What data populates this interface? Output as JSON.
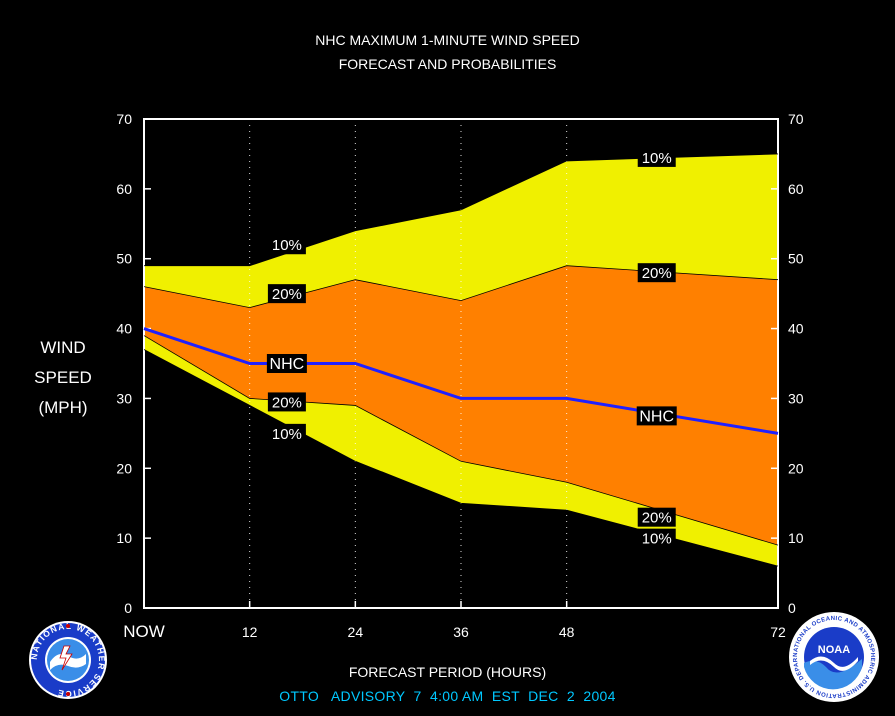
{
  "title_line1": "NHC MAXIMUM 1-MINUTE WIND SPEED",
  "title_line2": "FORECAST AND PROBABILITIES",
  "ylabel_lines": [
    "WIND",
    "SPEED",
    "(MPH)"
  ],
  "xlabel": "FORECAST PERIOD (HOURS)",
  "advisory": "OTTO   ADVISORY  7  4:00 AM  EST  DEC  2  2004",
  "colors": {
    "background": "#000000",
    "outer_band": "#f0f000",
    "inner_band": "#ff8000",
    "nhc_line": "#2020ff",
    "advisory_text": "#00c8ff",
    "text": "#ffffff"
  },
  "chart_data": {
    "type": "area",
    "x": [
      0,
      12,
      24,
      36,
      48,
      72
    ],
    "x_tick_labels": [
      "NOW",
      "12",
      "24",
      "36",
      "48",
      "72"
    ],
    "xlim": [
      0,
      72
    ],
    "ylim": [
      0,
      70
    ],
    "y_ticks": [
      0,
      10,
      20,
      30,
      40,
      50,
      60,
      70
    ],
    "grid": "dotted vertical lines at forecast hours",
    "series": [
      {
        "name": "10%",
        "role": "upper_outer",
        "x": [
          0,
          12,
          24,
          36,
          48,
          72
        ],
        "values": [
          49,
          49,
          54,
          57,
          64,
          65
        ]
      },
      {
        "name": "20%",
        "role": "upper_inner",
        "x": [
          0,
          12,
          24,
          36,
          48,
          72
        ],
        "values": [
          46,
          43,
          47,
          44,
          49,
          47
        ]
      },
      {
        "name": "NHC",
        "role": "forecast",
        "x": [
          0,
          12,
          24,
          36,
          48,
          72
        ],
        "values": [
          40,
          35,
          35,
          30,
          30,
          25
        ]
      },
      {
        "name": "20%",
        "role": "lower_inner",
        "x": [
          0,
          12,
          24,
          36,
          48,
          72
        ],
        "values": [
          39,
          30,
          29,
          21,
          18,
          9
        ]
      },
      {
        "name": "10%",
        "role": "lower_outer",
        "x": [
          0,
          12,
          24,
          36,
          48,
          72
        ],
        "values": [
          37,
          29,
          21,
          15,
          14,
          6
        ]
      }
    ],
    "annotations": [
      {
        "text": "10%",
        "series": "upper_outer",
        "x": 16,
        "y": 52
      },
      {
        "text": "20%",
        "series": "upper_inner",
        "x": 16,
        "y": 45
      },
      {
        "text": "NHC",
        "series": "forecast",
        "x": 16,
        "y": 35
      },
      {
        "text": "20%",
        "series": "lower_inner",
        "x": 16,
        "y": 29.5
      },
      {
        "text": "10%",
        "series": "lower_outer",
        "x": 16,
        "y": 25
      },
      {
        "text": "10%",
        "series": "upper_outer",
        "x": 58,
        "y": 64.5
      },
      {
        "text": "20%",
        "series": "upper_inner",
        "x": 58,
        "y": 48
      },
      {
        "text": "NHC",
        "series": "forecast",
        "x": 58,
        "y": 27.5
      },
      {
        "text": "20%",
        "series": "lower_inner",
        "x": 58,
        "y": 13
      },
      {
        "text": "10%",
        "series": "lower_outer",
        "x": 58,
        "y": 10
      }
    ]
  },
  "logos": {
    "left": "nws-logo",
    "right": "noaa-logo",
    "left_text": "NATIONAL WEATHER SERVICE",
    "right_text": "NATIONAL OCEANIC AND ATMOSPHERIC ADMINISTRATION U.S. DEPARTMENT OF COMMERCE",
    "right_center": "NOAA"
  }
}
